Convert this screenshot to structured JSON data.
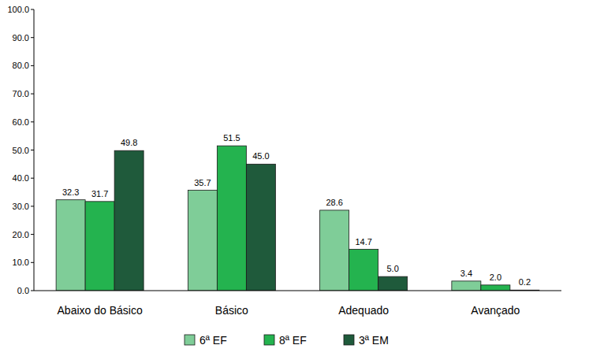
{
  "chart_data": {
    "type": "bar",
    "categories": [
      "Abaixo do Básico",
      "Básico",
      "Adequado",
      "Avançado"
    ],
    "series": [
      {
        "name": "6ª EF",
        "color": "#7fcd98",
        "values": [
          32.3,
          35.7,
          28.6,
          3.4
        ],
        "value_labels": [
          "32.3",
          "35.7",
          "28.6",
          "3.4"
        ]
      },
      {
        "name": "8ª EF",
        "color": "#24b34f",
        "values": [
          31.7,
          51.5,
          14.7,
          2.0
        ],
        "value_labels": [
          "31.7",
          "51.5",
          "14.7",
          "2.0"
        ]
      },
      {
        "name": "3ª EM",
        "color": "#1f5a3b",
        "values": [
          49.8,
          45.0,
          5.0,
          0.2
        ],
        "value_labels": [
          "49.8",
          "45.0",
          "5.0",
          "0.2"
        ]
      }
    ],
    "ylim": [
      0,
      100
    ],
    "yticks": [
      {
        "value": 0,
        "label": "0.0"
      },
      {
        "value": 10,
        "label": "10.0"
      },
      {
        "value": 20,
        "label": "20.0"
      },
      {
        "value": 30,
        "label": "30.0"
      },
      {
        "value": 40,
        "label": "40.0"
      },
      {
        "value": 50,
        "label": "50.0"
      },
      {
        "value": 60,
        "label": "60.0"
      },
      {
        "value": 70,
        "label": "70.0"
      },
      {
        "value": 80,
        "label": "80.0"
      },
      {
        "value": 90,
        "label": "90.0"
      },
      {
        "value": 100,
        "label": "100.0"
      }
    ],
    "grid": false,
    "legend": "bottom",
    "data_labels": true
  }
}
